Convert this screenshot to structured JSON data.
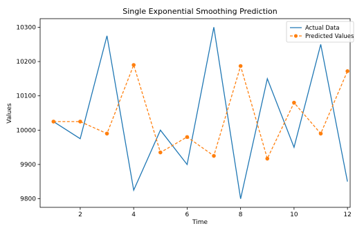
{
  "chart_data": {
    "type": "line",
    "title": "Single Exponential Smoothing Prediction",
    "xlabel": "Time",
    "ylabel": "Values",
    "xlim": [
      0.5,
      12.1
    ],
    "ylim": [
      9775,
      10325
    ],
    "xticks": [
      2,
      4,
      6,
      8,
      10,
      12
    ],
    "yticks": [
      9800,
      9900,
      10000,
      10100,
      10200,
      10300
    ],
    "x": [
      1,
      2,
      3,
      4,
      5,
      6,
      7,
      8,
      9,
      10,
      11,
      12
    ],
    "series": [
      {
        "name": "Actual Data",
        "color": "#1f77b4",
        "style": "solid",
        "marker": "none",
        "values": [
          10025,
          9975,
          10275,
          9825,
          10000,
          9900,
          10300,
          9800,
          10150,
          9950,
          10250,
          9850
        ]
      },
      {
        "name": "Predicted Values",
        "color": "#ff7f0e",
        "style": "dashed",
        "marker": "circle",
        "values": [
          10025,
          10025,
          9990,
          10190,
          9935,
          9980,
          9925,
          10187,
          9917,
          10080,
          9990,
          10172
        ]
      }
    ],
    "legend": "top-right",
    "grid": false
  }
}
